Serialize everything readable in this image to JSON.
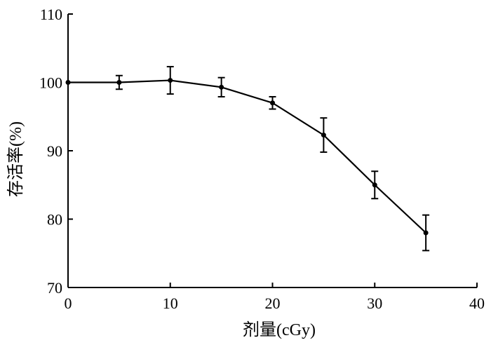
{
  "chart_data": {
    "type": "line",
    "xlabel": "剂量(cGy)",
    "ylabel": "存活率(%)",
    "xlim": [
      0,
      40
    ],
    "ylim": [
      70,
      110
    ],
    "x_ticks": [
      0,
      10,
      20,
      30,
      40
    ],
    "y_ticks": [
      70,
      80,
      90,
      100,
      110
    ],
    "grid": false,
    "series": [
      {
        "x": [
          0,
          5,
          10,
          15,
          20,
          25,
          30,
          35
        ],
        "y": [
          100,
          100,
          100.3,
          99.3,
          97,
          92.3,
          85,
          78
        ],
        "error": [
          0,
          1.0,
          2.0,
          1.4,
          0.9,
          2.5,
          2.0,
          2.6
        ],
        "color": "#000000"
      }
    ]
  }
}
